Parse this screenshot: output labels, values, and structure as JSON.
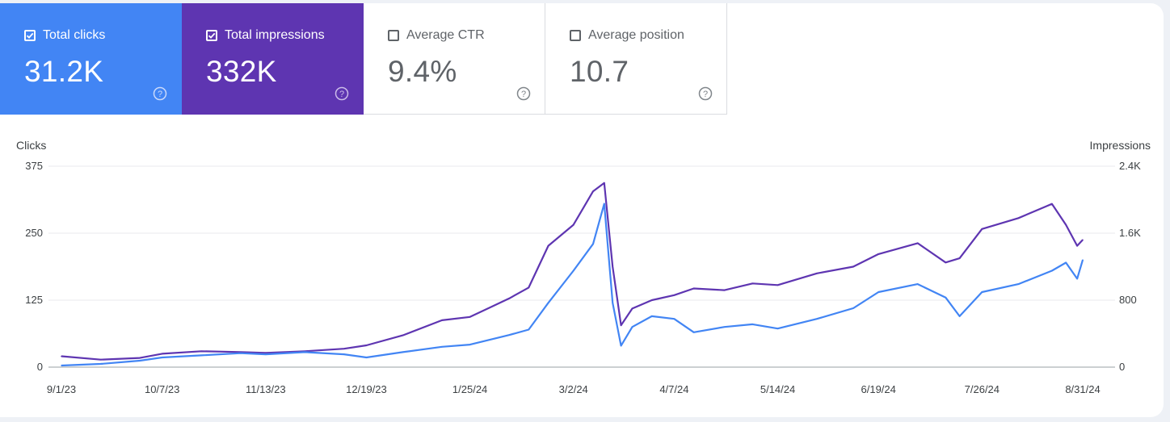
{
  "metrics": [
    {
      "key": "clicks",
      "label": "Total clicks",
      "value": "31.2K",
      "checked": true,
      "color": "#4285f4"
    },
    {
      "key": "impressions",
      "label": "Total impressions",
      "value": "332K",
      "checked": true,
      "color": "#5e35b1"
    },
    {
      "key": "ctr",
      "label": "Average CTR",
      "value": "9.4%",
      "checked": false
    },
    {
      "key": "position",
      "label": "Average position",
      "value": "10.7",
      "checked": false
    }
  ],
  "chart_data": {
    "type": "line",
    "left_axis": {
      "label": "Clicks",
      "ticks": [
        "0",
        "125",
        "250",
        "375"
      ],
      "range": [
        0,
        375
      ]
    },
    "right_axis": {
      "label": "Impressions",
      "ticks": [
        "0",
        "800",
        "1.6K",
        "2.4K"
      ],
      "range": [
        0,
        2400
      ]
    },
    "x_ticks": [
      "9/1/23",
      "10/7/23",
      "11/13/23",
      "12/19/23",
      "1/25/24",
      "3/2/24",
      "4/7/24",
      "5/14/24",
      "6/19/24",
      "7/26/24",
      "8/31/24"
    ],
    "grid": true,
    "series": [
      {
        "name": "Total clicks",
        "axis": "left",
        "color": "#4285f4",
        "points": [
          [
            "9/1/23",
            3
          ],
          [
            "9/15/23",
            6
          ],
          [
            "9/29/23",
            12
          ],
          [
            "10/7/23",
            18
          ],
          [
            "10/21/23",
            22
          ],
          [
            "11/4/23",
            26
          ],
          [
            "11/13/23",
            24
          ],
          [
            "11/27/23",
            28
          ],
          [
            "12/11/23",
            24
          ],
          [
            "12/19/23",
            18
          ],
          [
            "1/1/24",
            28
          ],
          [
            "1/15/24",
            38
          ],
          [
            "1/25/24",
            42
          ],
          [
            "2/8/24",
            60
          ],
          [
            "2/15/24",
            70
          ],
          [
            "2/22/24",
            120
          ],
          [
            "3/2/24",
            180
          ],
          [
            "3/9/24",
            230
          ],
          [
            "3/13/24",
            305
          ],
          [
            "3/16/24",
            120
          ],
          [
            "3/19/24",
            40
          ],
          [
            "3/23/24",
            75
          ],
          [
            "3/30/24",
            95
          ],
          [
            "4/7/24",
            90
          ],
          [
            "4/14/24",
            65
          ],
          [
            "4/25/24",
            75
          ],
          [
            "5/5/24",
            80
          ],
          [
            "5/14/24",
            72
          ],
          [
            "5/28/24",
            90
          ],
          [
            "6/10/24",
            110
          ],
          [
            "6/19/24",
            140
          ],
          [
            "7/3/24",
            155
          ],
          [
            "7/13/24",
            130
          ],
          [
            "7/18/24",
            95
          ],
          [
            "7/26/24",
            140
          ],
          [
            "8/8/24",
            155
          ],
          [
            "8/20/24",
            180
          ],
          [
            "8/25/24",
            195
          ],
          [
            "8/29/24",
            165
          ],
          [
            "8/31/24",
            200
          ]
        ]
      },
      {
        "name": "Total impressions",
        "axis": "right",
        "color": "#5e35b1",
        "points": [
          [
            "9/1/23",
            130
          ],
          [
            "9/15/23",
            90
          ],
          [
            "9/29/23",
            110
          ],
          [
            "10/7/23",
            160
          ],
          [
            "10/21/23",
            190
          ],
          [
            "11/4/23",
            180
          ],
          [
            "11/13/23",
            170
          ],
          [
            "11/27/23",
            190
          ],
          [
            "12/11/23",
            220
          ],
          [
            "12/19/23",
            260
          ],
          [
            "1/1/24",
            380
          ],
          [
            "1/15/24",
            560
          ],
          [
            "1/25/24",
            600
          ],
          [
            "2/8/24",
            820
          ],
          [
            "2/15/24",
            950
          ],
          [
            "2/22/24",
            1450
          ],
          [
            "3/2/24",
            1700
          ],
          [
            "3/9/24",
            2100
          ],
          [
            "3/13/24",
            2200
          ],
          [
            "3/16/24",
            1200
          ],
          [
            "3/19/24",
            500
          ],
          [
            "3/23/24",
            700
          ],
          [
            "3/30/24",
            800
          ],
          [
            "4/7/24",
            860
          ],
          [
            "4/14/24",
            940
          ],
          [
            "4/25/24",
            920
          ],
          [
            "5/5/24",
            1000
          ],
          [
            "5/14/24",
            980
          ],
          [
            "5/28/24",
            1120
          ],
          [
            "6/10/24",
            1200
          ],
          [
            "6/19/24",
            1350
          ],
          [
            "7/3/24",
            1480
          ],
          [
            "7/13/24",
            1250
          ],
          [
            "7/18/24",
            1300
          ],
          [
            "7/26/24",
            1650
          ],
          [
            "8/8/24",
            1780
          ],
          [
            "8/20/24",
            1950
          ],
          [
            "8/25/24",
            1700
          ],
          [
            "8/29/24",
            1450
          ],
          [
            "8/31/24",
            1520
          ]
        ]
      }
    ]
  }
}
